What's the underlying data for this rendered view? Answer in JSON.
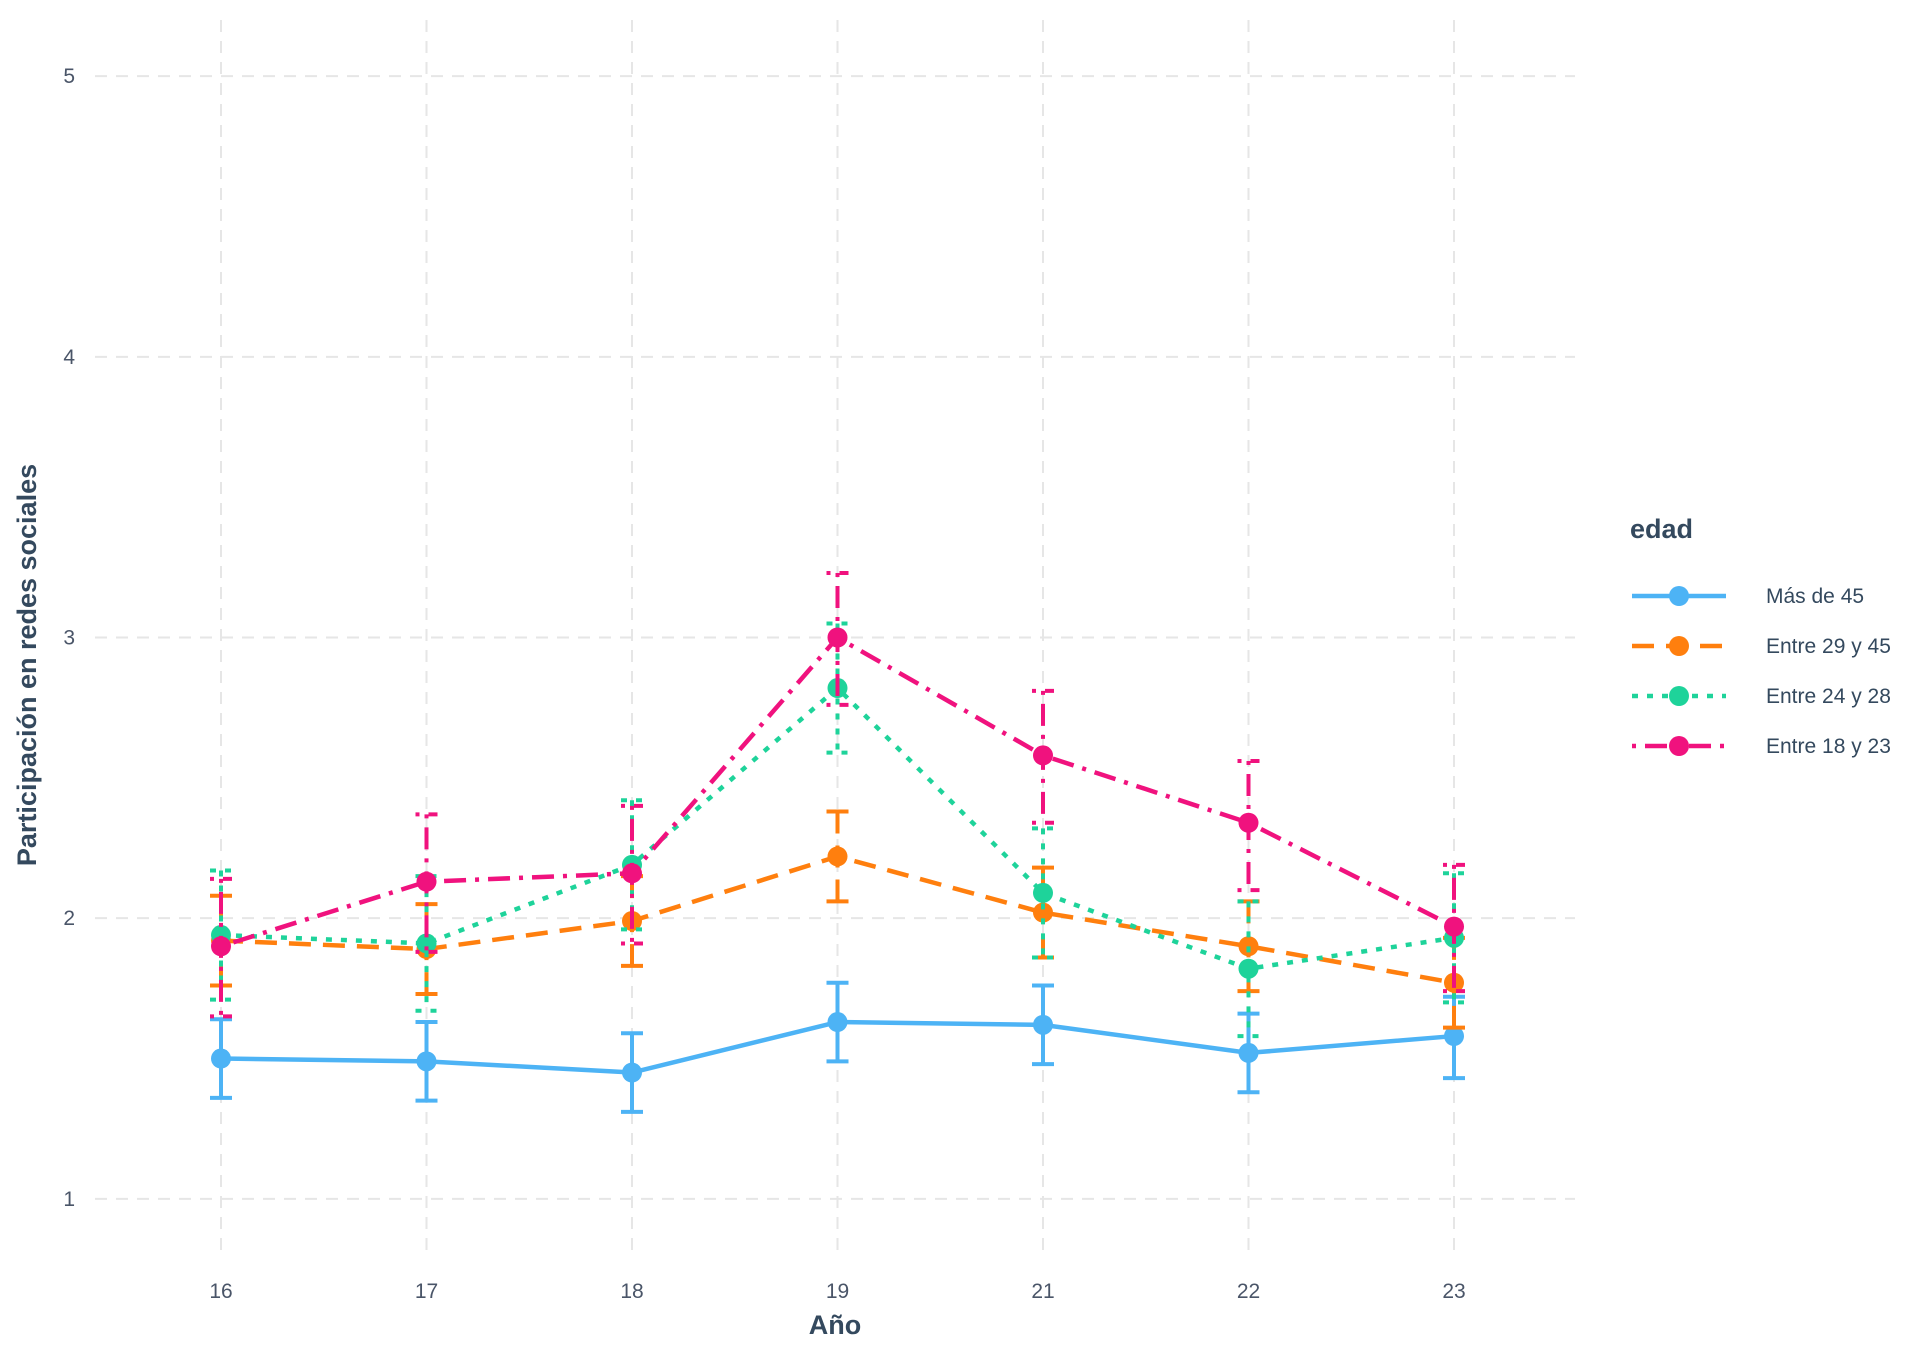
{
  "chart_data": {
    "type": "line",
    "title": "",
    "xlabel": "Año",
    "ylabel": "Participación en redes sociales",
    "categories": [
      "16",
      "17",
      "18",
      "19",
      "21",
      "22",
      "23"
    ],
    "ylim": [
      0.8,
      5.2
    ],
    "yticks": [
      1,
      2,
      3,
      4,
      5
    ],
    "grid": true,
    "legend": {
      "title": "edad",
      "position": "right"
    },
    "series": [
      {
        "name": "Más de 45",
        "color": "#4db3f5",
        "dash": "solid",
        "values": [
          1.5,
          1.49,
          1.45,
          1.63,
          1.62,
          1.52,
          1.58
        ],
        "lower": [
          1.36,
          1.35,
          1.31,
          1.49,
          1.48,
          1.38,
          1.43
        ],
        "upper": [
          1.64,
          1.63,
          1.59,
          1.77,
          1.76,
          1.66,
          1.72
        ]
      },
      {
        "name": "Entre 29 y 45",
        "color": "#ff7f0e",
        "dash": "longdash",
        "values": [
          1.92,
          1.89,
          1.99,
          2.22,
          2.02,
          1.9,
          1.77
        ],
        "lower": [
          1.76,
          1.73,
          1.83,
          2.06,
          1.86,
          1.74,
          1.61
        ],
        "upper": [
          2.08,
          2.05,
          2.15,
          2.38,
          2.18,
          2.06,
          1.93
        ]
      },
      {
        "name": "Entre 24 y 28",
        "color": "#1ed39a",
        "dash": "dotted",
        "values": [
          1.94,
          1.91,
          2.19,
          2.82,
          2.09,
          1.82,
          1.93
        ],
        "lower": [
          1.71,
          1.67,
          1.96,
          2.59,
          1.86,
          1.58,
          1.7
        ],
        "upper": [
          2.17,
          2.15,
          2.42,
          3.05,
          2.32,
          2.06,
          2.16
        ]
      },
      {
        "name": "Entre 18 y 23",
        "color": "#f0127e",
        "dash": "dotdash",
        "values": [
          1.9,
          2.13,
          2.16,
          3.0,
          2.58,
          2.34,
          1.97
        ],
        "lower": [
          1.65,
          1.88,
          1.91,
          2.76,
          2.34,
          2.1,
          1.74
        ],
        "upper": [
          2.14,
          2.37,
          2.4,
          3.23,
          2.81,
          2.56,
          2.19
        ]
      }
    ]
  }
}
